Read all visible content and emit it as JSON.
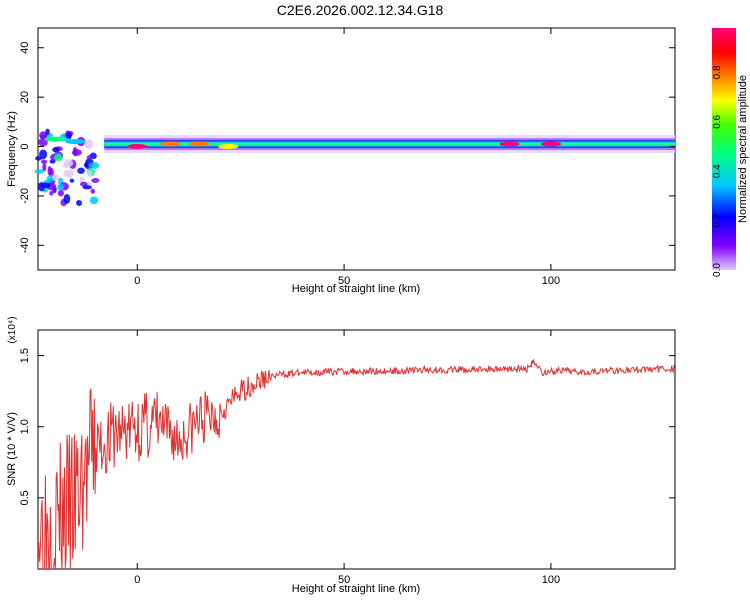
{
  "title": "C2E6.2026.002.12.34.G18",
  "chart_data": [
    {
      "type": "heatmap",
      "xlabel": "Height of straight line (km)",
      "ylabel": "Frequency (Hz)",
      "xlim": [
        -24,
        130
      ],
      "ylim": [
        -50,
        48
      ],
      "xticks": [
        0,
        50,
        100
      ],
      "yticks": [
        -40,
        -20,
        0,
        20,
        40
      ],
      "grid": false,
      "colorbar": {
        "label": "Normalized spectral amplitude",
        "ticks": [
          "0.0",
          "0.2",
          "0.4",
          "0.6",
          "0.8"
        ],
        "range": [
          0,
          0.98
        ],
        "colormap": [
          "#e0c8ff",
          "#8000ff",
          "#0000ff",
          "#00c8ff",
          "#00ff80",
          "#40ff00",
          "#ffff00",
          "#ff8000",
          "#ff0000",
          "#ff0080"
        ]
      },
      "dominant_frequency_hz": 1,
      "features": [
        {
          "x": 0,
          "y": 0,
          "amp": 0.9
        },
        {
          "x": 8,
          "y": 1,
          "amp": 0.75
        },
        {
          "x": 15,
          "y": 1,
          "amp": 0.7
        },
        {
          "x": 22,
          "y": 0,
          "amp": 0.6
        },
        {
          "x": 90,
          "y": 1,
          "amp": 0.95
        },
        {
          "x": 100,
          "y": 1,
          "amp": 0.95
        },
        {
          "x": -20,
          "y": 3,
          "amp": 0.4
        },
        {
          "x": -15,
          "y": 2,
          "amp": 0.35
        }
      ]
    },
    {
      "type": "line",
      "xlabel": "Height of straight line (km)",
      "ylabel": "SNR (10 * V/V)",
      "y_multiplier": "(x10⁴)",
      "xlim": [
        -24,
        130
      ],
      "ylim": [
        0,
        1.68
      ],
      "xticks": [
        0,
        50,
        100
      ],
      "yticks": [
        0.5,
        1.0,
        1.5
      ],
      "ytick_labels": [
        "0.5",
        "1.0",
        "1.5"
      ],
      "color": "#e03030",
      "series": [
        {
          "x": [
            -24,
            -20,
            -15,
            -12,
            -10,
            -5,
            0,
            5,
            10,
            15,
            20,
            25,
            30,
            35,
            40,
            50,
            60,
            70,
            80,
            90,
            94,
            96,
            98,
            100,
            110,
            120,
            130
          ],
          "values": [
            0.3,
            0.35,
            0.45,
            0.7,
            0.85,
            0.95,
            1.0,
            1.02,
            0.9,
            1.05,
            1.1,
            1.25,
            1.33,
            1.37,
            1.38,
            1.39,
            1.39,
            1.4,
            1.4,
            1.41,
            1.4,
            1.46,
            1.38,
            1.39,
            1.39,
            1.4,
            1.41
          ]
        }
      ]
    }
  ]
}
